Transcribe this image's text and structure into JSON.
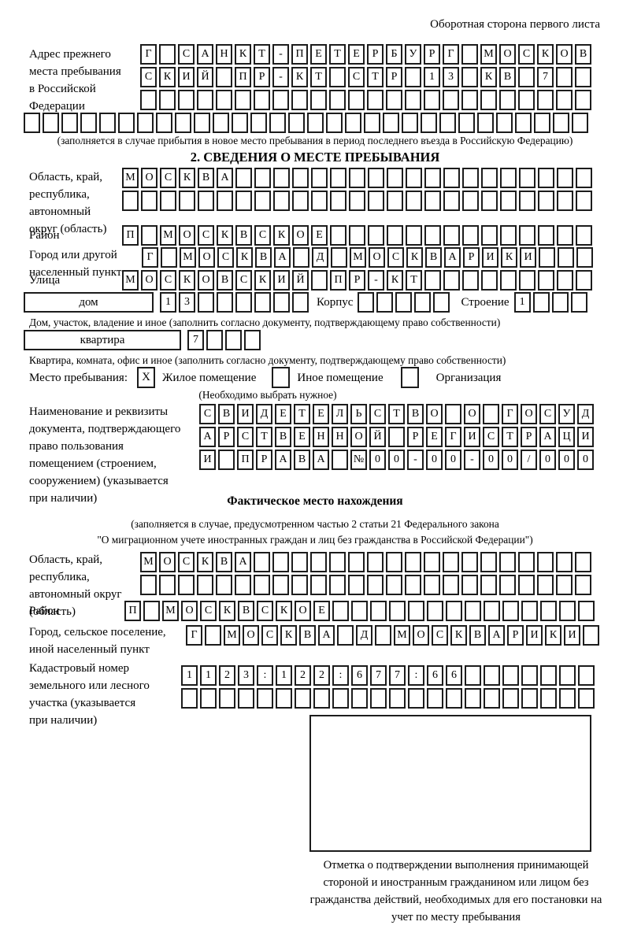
{
  "header": {
    "back_side_note": "Оборотная сторона первого листа"
  },
  "prev_address": {
    "label_lines": [
      "Адрес прежнего",
      "места пребывания",
      "в Российской",
      "Федерации"
    ],
    "rows": [
      "Г САНКТ-ПЕТЕРБУРГ МОСКОВ",
      "СКИЙ ПР-КТ СТР 13 КВ 7  ",
      "                        "
    ],
    "full_row": "                              ",
    "note": "(заполняется в случае прибытия в новое место пребывания в период последнего въезда в Российскую Федерацию)"
  },
  "section2": {
    "title": "2. СВЕДЕНИЯ О МЕСТЕ ПРЕБЫВАНИЯ",
    "region": {
      "label_lines": [
        "Область, край,",
        "республика,",
        "автономный",
        "округ (область)"
      ],
      "rows": [
        "МОСКВА                   ",
        "                         "
      ]
    },
    "district": {
      "label": "Район",
      "row": "П МОСКВСКОЕ              "
    },
    "city": {
      "label_lines": [
        "Город или другой",
        "населенный пункт"
      ],
      "row": "Г МОСКВА Д МОСКВАРИКИ   "
    },
    "street": {
      "label": "Улица",
      "row": "МОСКОВСКИЙ ПР-КТ         "
    },
    "house": {
      "box_label": "дом",
      "cells": "13      ",
      "korpus_label": "Корпус",
      "korpus_cells": "     ",
      "stroenie_label": "Строение",
      "stroenie_cells": "1   ",
      "note": "Дом, участок, владение и иное (заполнить согласно документу, подтверждающему право собственности)"
    },
    "apartment": {
      "box_label": "квартира",
      "cells": "7   ",
      "note": "Квартира, комната, офис и иное (заполнить согласно документу, подтверждающему право собственности)"
    },
    "stay": {
      "label": "Место пребывания:",
      "options": [
        {
          "label": "Жилое помещение",
          "mark": "X"
        },
        {
          "label": "Иное помещение",
          "mark": ""
        },
        {
          "label": "Организация",
          "mark": ""
        }
      ],
      "note": "(Необходимо выбрать нужное)"
    },
    "doc": {
      "label_lines": [
        "Наименование и реквизиты",
        "документа, подтверждающего",
        "право пользования",
        "помещением (строением,",
        "сооружением) (указывается",
        "при наличии)"
      ],
      "rows": [
        "СВИДЕТЕЛЬСТВО О ГОСУД",
        "АРСТВЕННОЙ РЕГИСТРАЦИ",
        "И ПРАВА №00-00-00/000"
      ]
    }
  },
  "actual_location": {
    "title": "Фактическое место нахождения",
    "note_lines": [
      "(заполняется в случае, предусмотренном частью 2 статьи 21 Федерального закона",
      "\"О миграционном учете иностранных граждан и лиц без гражданства в Российской Федерации\")"
    ],
    "region": {
      "label_lines": [
        "Область, край,",
        "республика,",
        "автономный округ",
        "(область)"
      ],
      "rows": [
        "МОСКВА                  ",
        "                        "
      ]
    },
    "district": {
      "label": "Район",
      "row": "П МОСКВСКОЕ              "
    },
    "city": {
      "label_lines": [
        "Город, сельское поселение,",
        "иной населенный пункт"
      ],
      "row": "Г МОСКВА Д МОСКВАРИКИ "
    },
    "cadastre": {
      "label_lines": [
        "Кадастровый номер",
        "земельного или лесного",
        "участка (указывается",
        "при наличии)"
      ],
      "rows": [
        "1123:122:677:66       ",
        "                      "
      ]
    },
    "stamp_caption_lines": [
      "Отметка о подтверждении выполнения принимающей",
      "стороной и иностранным гражданином или лицом без",
      "гражданства действий, необходимых для его постановки",
      "на учет по месту пребывания"
    ]
  }
}
